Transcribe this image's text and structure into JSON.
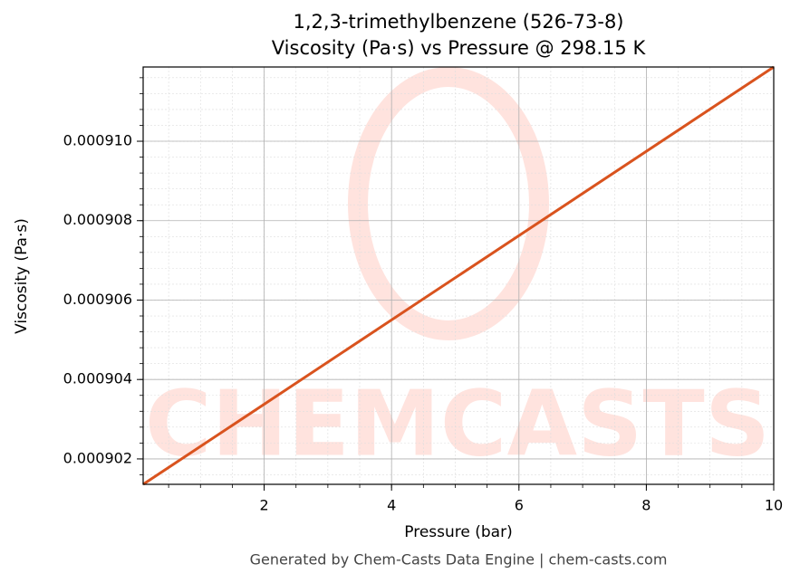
{
  "chart_data": {
    "type": "line",
    "title": "1,2,3-trimethylbenzene (526-73-8)",
    "subtitle": "Viscosity (Pa·s) vs Pressure @ 298.15 K",
    "x_label": "Pressure (bar)",
    "y_label": "Viscosity (Pa·s)",
    "watermark": "CHEMCASTS",
    "footer": "Generated by Chem-Casts Data Engine | chem-casts.com",
    "x": [
      0.1,
      10
    ],
    "series": [
      {
        "name": "Viscosity",
        "color": "#d9531e",
        "values": [
          0.00090136,
          0.00091187
        ]
      }
    ],
    "xlim": [
      0.1,
      10
    ],
    "ylim": [
      0.00090136,
      0.00091187
    ],
    "xticks": [
      2,
      4,
      6,
      8,
      10
    ],
    "yticks": [
      {
        "value": 0.000902,
        "label": "0.000902"
      },
      {
        "value": 0.000904,
        "label": "0.000904"
      },
      {
        "value": 0.000906,
        "label": "0.000906"
      },
      {
        "value": 0.000908,
        "label": "0.000908"
      },
      {
        "value": 0.00091,
        "label": "0.000910"
      }
    ],
    "grid": true
  }
}
